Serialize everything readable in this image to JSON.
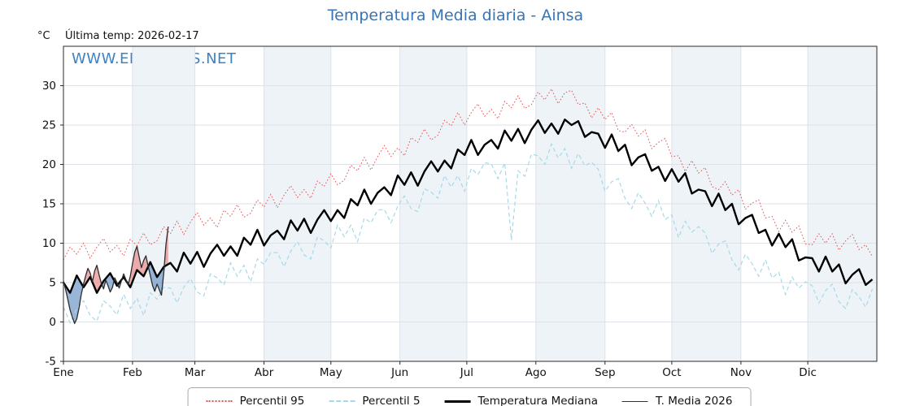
{
  "header": {
    "title": "Temperatura Media diaria - Ainsa",
    "y_unit": "°C",
    "last_temp_label": "Última temp: 2026-02-17",
    "watermark": "WWW.EMBALSES.NET"
  },
  "colors": {
    "title": "#3674b5",
    "watermark": "#3c82c4",
    "p95": "#e25555",
    "p5": "#a6d9e8",
    "median": "#000000",
    "t2026": "#2d2d2d",
    "fill_above": "#e98c8c",
    "fill_below": "#6d97c9",
    "band": "#eef3f8",
    "grid": "#dde2e8",
    "spine": "#2a2a2a"
  },
  "chart_data": {
    "type": "line",
    "title": "Temperatura Media diaria - Ainsa",
    "xlabel": "",
    "ylabel": "°C",
    "ylim": [
      -5,
      35
    ],
    "yticks": [
      -5,
      0,
      5,
      10,
      15,
      20,
      25,
      30
    ],
    "month_labels": [
      "Ene",
      "Feb",
      "Mar",
      "Abr",
      "May",
      "Jun",
      "Jul",
      "Ago",
      "Sep",
      "Oct",
      "Nov",
      "Dic"
    ],
    "month_starts": [
      0,
      31,
      59,
      90,
      120,
      151,
      181,
      212,
      243,
      273,
      304,
      334
    ],
    "days_total": 365,
    "grid": true,
    "legend_position": "bottom",
    "series": [
      {
        "name": "Percentil 95",
        "style": "dotted-red",
        "step_days": 3,
        "values": [
          7.9,
          9.5,
          8.6,
          10.0,
          8.1,
          9.5,
          10.6,
          8.9,
          9.7,
          8.4,
          10.5,
          9.7,
          11.3,
          9.8,
          10.3,
          12.1,
          11.2,
          12.8,
          11.1,
          12.7,
          13.9,
          12.3,
          13.2,
          12.0,
          14.2,
          13.4,
          14.9,
          13.3,
          13.8,
          15.5,
          14.6,
          16.2,
          14.5,
          16.1,
          17.3,
          15.8,
          16.8,
          15.7,
          17.9,
          17.2,
          18.8,
          17.4,
          18.0,
          19.9,
          19.2,
          20.9,
          19.3,
          21.0,
          22.4,
          21.0,
          22.1,
          21.1,
          23.4,
          22.8,
          24.5,
          23.1,
          23.7,
          25.6,
          24.9,
          26.6,
          25.0,
          26.6,
          27.7,
          26.1,
          27.0,
          25.8,
          28.0,
          27.2,
          28.7,
          27.1,
          27.6,
          29.2,
          28.2,
          29.6,
          27.7,
          29.1,
          29.4,
          27.6,
          27.8,
          25.9,
          27.2,
          25.7,
          26.6,
          24.3,
          24.1,
          25.1,
          23.6,
          24.4,
          22.0,
          22.8,
          23.3,
          21.0,
          21.1,
          19.1,
          20.5,
          18.9,
          19.6,
          17.2,
          16.8,
          17.8,
          16.1,
          16.8,
          14.3,
          15.1,
          15.5,
          13.2,
          13.4,
          11.5,
          12.9,
          11.4,
          12.2,
          9.9,
          9.8,
          11.2,
          10.0,
          11.2,
          9.1,
          10.3,
          11.1,
          9.2,
          9.8,
          8.3
        ]
      },
      {
        "name": "Percentil 5",
        "style": "dashed-lightblue",
        "step_days": 3,
        "values": [
          1.9,
          -0.1,
          1.7,
          2.7,
          0.8,
          0.1,
          2.7,
          2.0,
          0.9,
          3.5,
          1.7,
          3.0,
          0.8,
          3.7,
          2.9,
          4.4,
          4.3,
          2.4,
          4.4,
          5.5,
          3.8,
          3.3,
          6.1,
          5.6,
          4.7,
          7.5,
          5.8,
          7.2,
          5.1,
          8.0,
          7.3,
          8.8,
          8.8,
          7.0,
          9.0,
          10.2,
          8.5,
          8.0,
          10.8,
          10.3,
          9.4,
          12.3,
          10.8,
          12.3,
          10.2,
          13.2,
          12.6,
          14.2,
          14.3,
          12.6,
          14.7,
          16.0,
          14.4,
          14.0,
          16.9,
          16.5,
          15.7,
          18.6,
          17.1,
          18.6,
          16.6,
          19.5,
          18.7,
          20.2,
          20.1,
          18.2,
          20.2,
          10.4,
          19.2,
          18.5,
          21.3,
          21.1,
          20.0,
          22.6,
          20.8,
          22.0,
          19.5,
          21.4,
          19.8,
          20.3,
          19.4,
          16.6,
          17.8,
          18.2,
          15.7,
          14.4,
          16.4,
          15.1,
          13.4,
          15.4,
          13.0,
          13.6,
          10.7,
          12.8,
          11.4,
          12.1,
          11.3,
          8.7,
          9.9,
          10.3,
          7.9,
          6.6,
          8.6,
          7.4,
          5.8,
          7.9,
          5.6,
          6.3,
          3.5,
          5.7,
          4.3,
          5.1,
          4.6,
          2.4,
          4.0,
          4.8,
          2.6,
          1.7,
          4.1,
          3.2,
          1.9,
          4.2
        ]
      },
      {
        "name": "Temperatura Mediana",
        "style": "solid-black-thick",
        "step_days": 3,
        "values": [
          5.0,
          3.7,
          5.9,
          4.4,
          5.7,
          3.7,
          5.2,
          6.2,
          4.6,
          5.7,
          4.4,
          6.6,
          5.8,
          7.6,
          5.7,
          7.0,
          7.5,
          6.4,
          8.8,
          7.4,
          8.9,
          7.0,
          8.7,
          9.8,
          8.4,
          9.6,
          8.4,
          10.7,
          9.8,
          11.7,
          9.7,
          11.0,
          11.6,
          10.5,
          12.9,
          11.6,
          13.1,
          11.3,
          13.0,
          14.2,
          12.8,
          14.2,
          13.2,
          15.6,
          14.8,
          16.8,
          15.0,
          16.4,
          17.1,
          16.1,
          18.6,
          17.4,
          19.0,
          17.3,
          19.1,
          20.4,
          19.1,
          20.5,
          19.5,
          21.9,
          21.2,
          23.1,
          21.2,
          22.5,
          23.1,
          22.0,
          24.3,
          23.0,
          24.5,
          22.7,
          24.4,
          25.6,
          24.0,
          25.2,
          23.9,
          25.7,
          25.0,
          25.5,
          23.5,
          24.1,
          23.9,
          22.1,
          23.8,
          21.7,
          22.5,
          19.9,
          20.9,
          21.3,
          19.2,
          19.7,
          17.9,
          19.4,
          17.8,
          18.9,
          16.3,
          16.8,
          16.6,
          14.7,
          16.3,
          14.2,
          15.0,
          12.4,
          13.2,
          13.6,
          11.3,
          11.7,
          9.7,
          11.2,
          9.5,
          10.5,
          7.8,
          8.2,
          8.1,
          6.4,
          8.3,
          6.4,
          7.3,
          4.9,
          6.0,
          6.7,
          4.7,
          5.4
        ]
      },
      {
        "name": "T. Media 2026",
        "style": "solid-dark-thin",
        "step_days": 1,
        "values": [
          5.2,
          4.1,
          2.8,
          1.5,
          0.6,
          -0.2,
          0.4,
          1.8,
          3.5,
          4.8,
          5.9,
          6.8,
          6.2,
          5.1,
          6.5,
          7.2,
          6.0,
          4.9,
          4.2,
          5.3,
          4.6,
          3.8,
          4.4,
          5.6,
          5.0,
          4.3,
          5.2,
          6.1,
          5.4,
          4.7,
          5.8,
          7.4,
          8.9,
          9.6,
          8.2,
          6.9,
          7.8,
          8.4,
          7.1,
          5.9,
          4.6,
          3.9,
          4.8,
          4.1,
          3.4,
          6.2,
          9.8,
          12.1
        ]
      }
    ]
  }
}
